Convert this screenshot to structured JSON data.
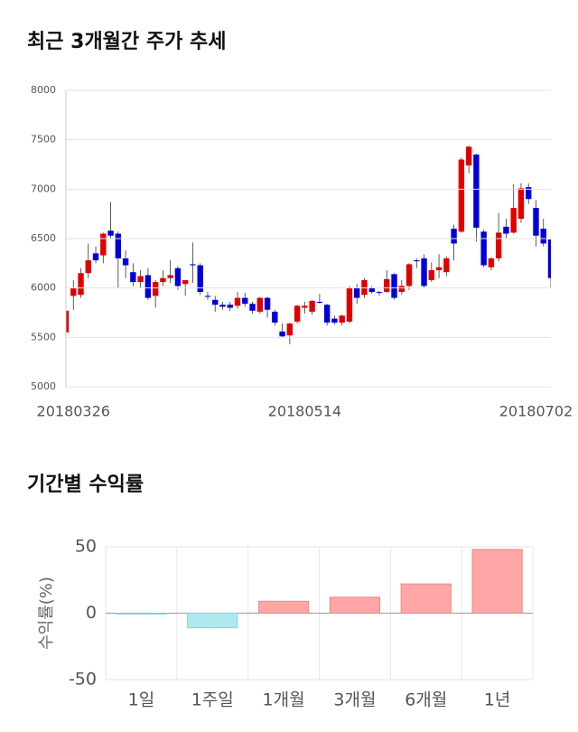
{
  "chart_data": [
    {
      "type": "candlestick",
      "title": "최근 3개월간 주가 추세",
      "categories": [
        null,
        "20180326",
        null,
        null,
        null,
        null,
        null,
        null,
        null,
        null,
        null,
        null,
        null,
        null,
        null,
        null,
        null,
        null,
        null,
        null,
        null,
        null,
        null,
        null,
        null,
        null,
        null,
        null,
        null,
        null,
        null,
        null,
        "20180514",
        null,
        null,
        null,
        null,
        null,
        null,
        null,
        null,
        null,
        null,
        null,
        null,
        null,
        null,
        null,
        null,
        null,
        null,
        null,
        null,
        null,
        null,
        null,
        null,
        null,
        null,
        null,
        null,
        null,
        null,
        "20180702",
        null,
        null
      ],
      "open": [
        5550,
        5920,
        5930,
        6150,
        6350,
        6330,
        6580,
        6550,
        6300,
        6160,
        6060,
        6130,
        5920,
        6060,
        6100,
        6200,
        6040,
        6240,
        6230,
        5920,
        5880,
        5830,
        5830,
        5820,
        5900,
        5840,
        5760,
        5900,
        5760,
        5560,
        5520,
        5660,
        5800,
        5760,
        5860,
        5830,
        5690,
        5650,
        5660,
        6000,
        5930,
        6000,
        5960,
        5960,
        6140,
        5960,
        6020,
        6280,
        6300,
        6080,
        6180,
        6160,
        6600,
        6570,
        7240,
        7350,
        6570,
        6210,
        6300,
        6620,
        6560,
        6700,
        7020,
        6810,
        6600,
        6490
      ],
      "high": [
        5780,
        6080,
        6200,
        6450,
        6420,
        6560,
        6870,
        6570,
        6380,
        6250,
        6180,
        6200,
        6080,
        6180,
        6280,
        6220,
        6080,
        6460,
        6250,
        5960,
        5920,
        5860,
        5860,
        5960,
        5950,
        5860,
        5910,
        5910,
        5780,
        5640,
        5650,
        5830,
        5860,
        5880,
        5940,
        5840,
        5720,
        5730,
        6020,
        6040,
        6100,
        6020,
        5970,
        6180,
        6150,
        6080,
        6250,
        6300,
        6340,
        6260,
        6340,
        6320,
        6640,
        7320,
        7440,
        7360,
        6590,
        6310,
        6760,
        6700,
        7050,
        7060,
        7060,
        6890,
        6700,
        6500
      ],
      "low": [
        5540,
        5780,
        5900,
        6100,
        6250,
        6250,
        6500,
        6000,
        6100,
        6020,
        6000,
        5880,
        5800,
        6020,
        6050,
        5980,
        5920,
        6050,
        5930,
        5880,
        5760,
        5780,
        5770,
        5790,
        5810,
        5740,
        5740,
        5700,
        5620,
        5500,
        5430,
        5640,
        5740,
        5730,
        5840,
        5620,
        5630,
        5620,
        5640,
        5840,
        5900,
        5940,
        5920,
        5950,
        5880,
        5930,
        5980,
        6200,
        6000,
        6060,
        6100,
        6120,
        6280,
        6560,
        7160,
        6470,
        6210,
        6180,
        6270,
        6500,
        6550,
        6660,
        6850,
        6420,
        6420,
        6000
      ],
      "close": [
        5770,
        6000,
        6150,
        6280,
        6280,
        6550,
        6530,
        6300,
        6230,
        6060,
        6120,
        5900,
        6060,
        6100,
        6130,
        6020,
        6080,
        6230,
        5960,
        5910,
        5830,
        5810,
        5800,
        5900,
        5840,
        5770,
        5900,
        5780,
        5650,
        5510,
        5640,
        5820,
        5820,
        5870,
        5850,
        5650,
        5650,
        5720,
        6000,
        5900,
        6080,
        5960,
        5950,
        6090,
        5900,
        6020,
        6240,
        6270,
        6020,
        6180,
        6210,
        6300,
        6450,
        7300,
        7430,
        6610,
        6230,
        6300,
        6560,
        6550,
        6810,
        7010,
        6900,
        6530,
        6450,
        6100
      ],
      "up_color": "#e00000",
      "down_color": "#0000dd",
      "ylim": [
        5000,
        8000
      ],
      "yticks": [
        5000,
        5500,
        6000,
        6500,
        7000,
        7500,
        8000
      ],
      "grid": true
    },
    {
      "type": "bar",
      "title": "기간별 수익률",
      "y_label": "수익률(%)",
      "categories": [
        "1일",
        "1주일",
        "1개월",
        "3개월",
        "6개월",
        "1년"
      ],
      "values": [
        -0.5,
        -11,
        9,
        12,
        22,
        48
      ],
      "positive_color": "#ffa6a6",
      "negative_color": "#aee9ef",
      "ylim": [
        -50,
        50
      ],
      "yticks": [
        -50,
        0,
        50
      ],
      "grid": true
    }
  ]
}
